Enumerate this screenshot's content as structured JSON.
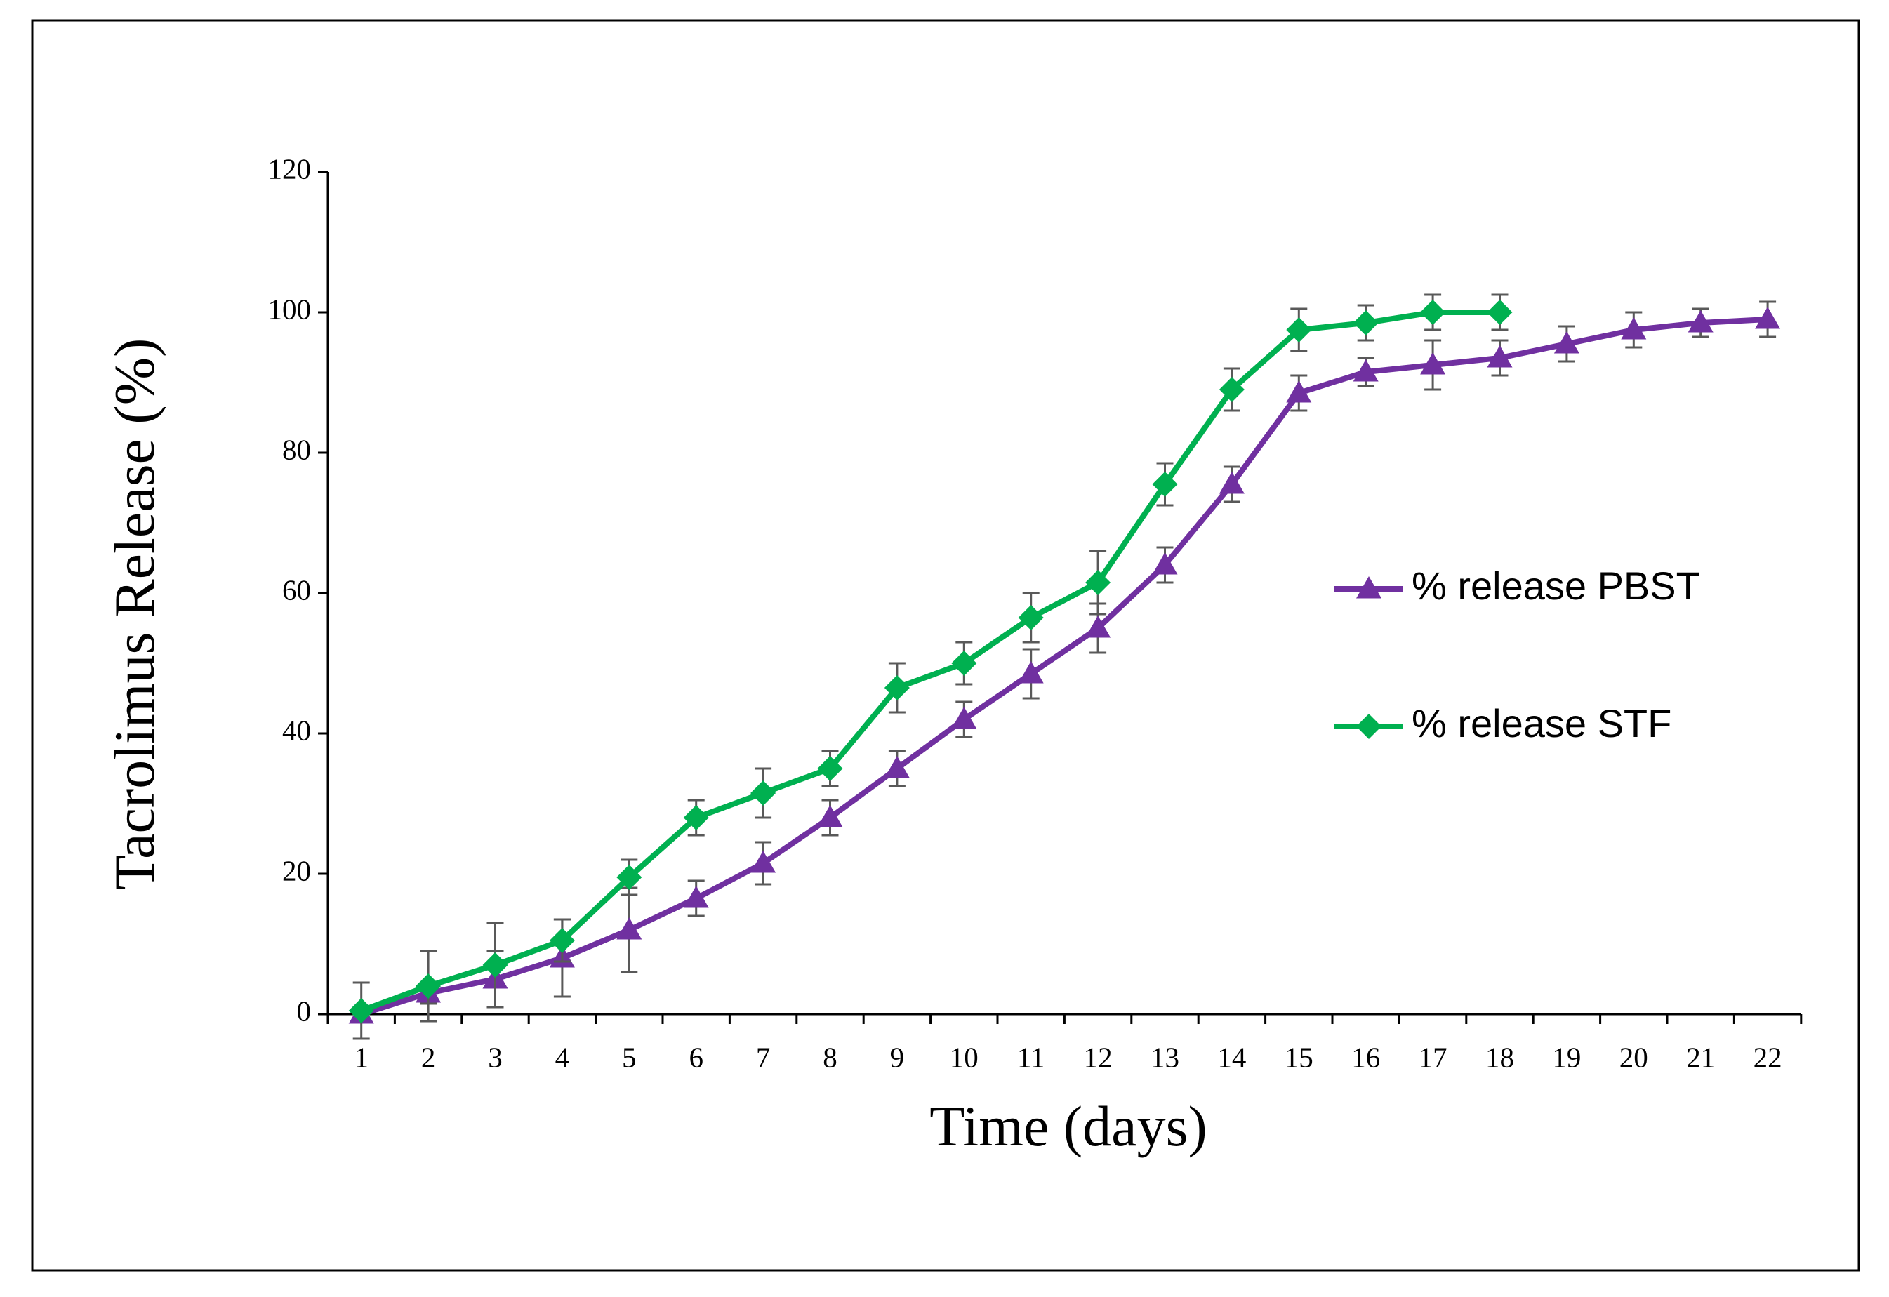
{
  "chart_data": {
    "type": "line",
    "xlabel": "Time (days)",
    "ylabel": "Tacrolimus Release (%)",
    "categories": [
      1,
      2,
      3,
      4,
      5,
      6,
      7,
      8,
      9,
      10,
      11,
      12,
      13,
      14,
      15,
      16,
      17,
      18,
      19,
      20,
      21,
      22
    ],
    "series": [
      {
        "name": "% release PBST",
        "color": "#7030a0",
        "marker": "triangle",
        "values": [
          0,
          3,
          5,
          8,
          12,
          16.5,
          21.5,
          28,
          35,
          42,
          48.5,
          55,
          64,
          75.5,
          88.5,
          91.5,
          92.5,
          93.5,
          95.5,
          97.5,
          98.5,
          99
        ],
        "errors": [
          1,
          1.5,
          4,
          5.5,
          6,
          2.5,
          3,
          2.5,
          2.5,
          2.5,
          3.5,
          3.5,
          2.5,
          2.5,
          2.5,
          2,
          3.5,
          2.5,
          2.5,
          2.5,
          2,
          2.5
        ]
      },
      {
        "name": "% release STF",
        "color": "#00b050",
        "marker": "diamond",
        "values": [
          0.5,
          4,
          7,
          10.5,
          19.5,
          28,
          31.5,
          35,
          46.5,
          50,
          56.5,
          61.5,
          75.5,
          89,
          97.5,
          98.5,
          100,
          100,
          null,
          null,
          null,
          null
        ],
        "errors": [
          4,
          5,
          6,
          3,
          2.5,
          2.5,
          3.5,
          2.5,
          3.5,
          3,
          3.5,
          4.5,
          3,
          3,
          3,
          2.5,
          2.5,
          2.5,
          null,
          null,
          null,
          null
        ]
      }
    ],
    "ylim": [
      0,
      120
    ],
    "yticks": [
      0,
      20,
      40,
      60,
      80,
      100,
      120
    ],
    "legend": "right",
    "error_bar_color": "#595959"
  }
}
